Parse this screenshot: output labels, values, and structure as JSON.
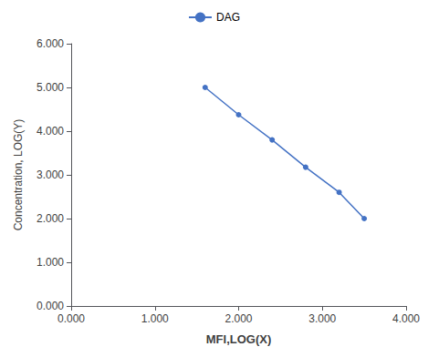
{
  "chart_data": {
    "type": "line",
    "x_label": "MFI,LOG(X)",
    "y_label": "Concentration, LOG(Y)",
    "x": [
      1.6,
      2.0,
      2.4,
      2.8,
      3.2,
      3.5
    ],
    "series": [
      {
        "name": "DAG",
        "color": "#4472c4",
        "marker": "circle",
        "values": [
          5.0,
          4.375,
          3.8,
          3.175,
          2.6,
          2.0
        ]
      }
    ],
    "xlim": [
      0.0,
      4.0
    ],
    "ylim": [
      0.0,
      6.0
    ],
    "xticks": [
      {
        "value": 0.0,
        "label": "0.000"
      },
      {
        "value": 1.0,
        "label": "1.000"
      },
      {
        "value": 2.0,
        "label": "2.000"
      },
      {
        "value": 3.0,
        "label": "3.000"
      },
      {
        "value": 4.0,
        "label": "4.000"
      }
    ],
    "yticks": [
      {
        "value": 0.0,
        "label": "0.000"
      },
      {
        "value": 1.0,
        "label": "1.000"
      },
      {
        "value": 2.0,
        "label": "2.000"
      },
      {
        "value": 3.0,
        "label": "3.000"
      },
      {
        "value": 4.0,
        "label": "4.000"
      },
      {
        "value": 5.0,
        "label": "5.000"
      },
      {
        "value": 6.0,
        "label": "6.000"
      }
    ],
    "grid": false,
    "legend": "top"
  }
}
